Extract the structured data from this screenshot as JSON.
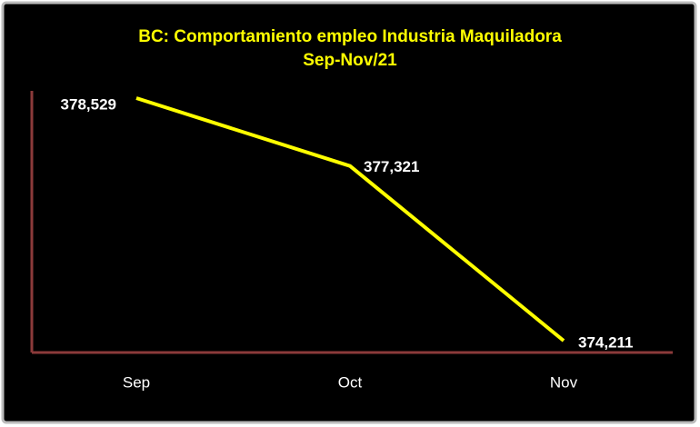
{
  "chart_data": {
    "type": "line",
    "title": "BC: Comportamiento empleo Industria Maquiladora",
    "subtitle": "Sep-Nov/21",
    "categories": [
      "Sep",
      "Oct",
      "Nov"
    ],
    "values": [
      378529,
      377321,
      374211
    ],
    "value_labels": [
      "378,529",
      "377,321",
      "374,211"
    ],
    "color": "#ffff00",
    "axis_color": "#8b3a3a"
  }
}
